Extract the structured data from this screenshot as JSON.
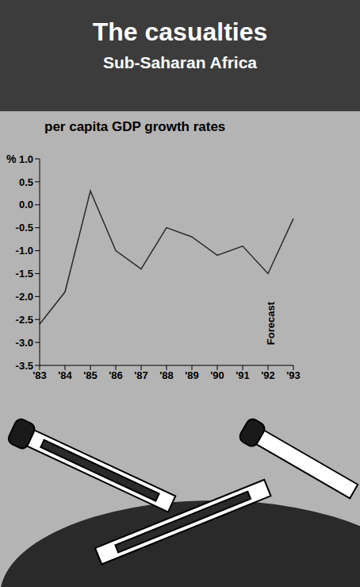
{
  "chart_data": {
    "type": "line",
    "title": "The casualties",
    "subtitle": "Sub-Saharan Africa",
    "chart_label": "per capita GDP growth rates",
    "y_label": "%",
    "annotation": "Forecast",
    "categories": [
      "'83",
      "'84",
      "'85",
      "'86",
      "'87",
      "'88",
      "'89",
      "'90",
      "'91",
      "'92",
      "'93"
    ],
    "values": [
      -2.6,
      -1.9,
      0.3,
      -1.0,
      -1.4,
      -0.5,
      -0.7,
      -1.1,
      -0.9,
      -1.5,
      -0.3
    ],
    "color": "#2b2b2b",
    "ylim": [
      -3.5,
      1.0
    ],
    "yticks": [
      {
        "value": 1.0,
        "label": "1.0"
      },
      0.5,
      {
        "value": 0.0,
        "label": "0.0"
      },
      -0.5,
      {
        "value": -1.0,
        "label": "-1.0"
      },
      -1.5,
      {
        "value": -2.0,
        "label": "-2.0"
      },
      -2.5,
      {
        "value": -3.0,
        "label": "-3.0"
      },
      -3.5
    ],
    "grid": false
  }
}
